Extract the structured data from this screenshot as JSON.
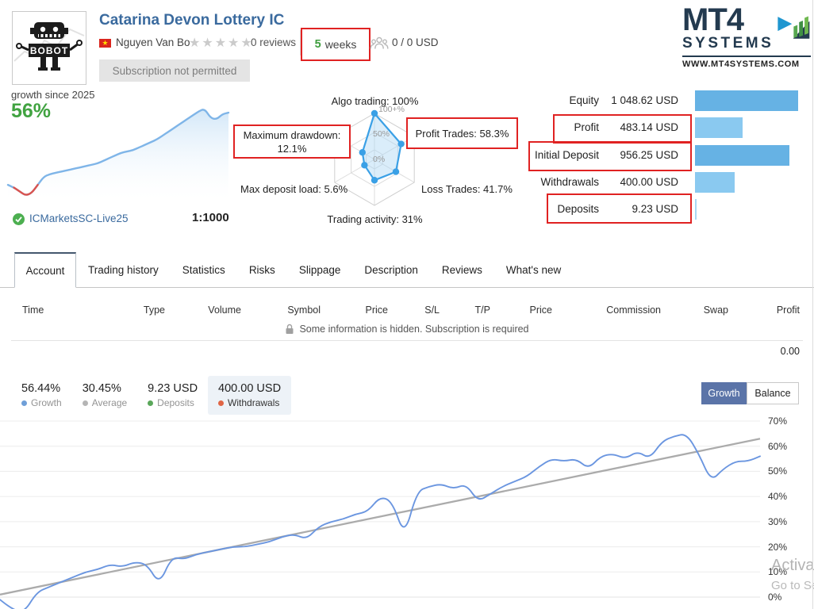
{
  "header": {
    "title": "Catarina Devon Lottery IC",
    "author": "Nguyen Van Bo",
    "stars": "★★★★★",
    "reviews": "0 reviews",
    "age_number": "5",
    "age_unit": "weeks",
    "subscribers": "0 / 0 USD",
    "subscription_status": "Subscription not permitted",
    "flag_star": "★"
  },
  "brand": {
    "name_top": "MT4",
    "name_bottom": "SYSTEMS",
    "url": "WWW.MT4SYSTEMS.COM"
  },
  "overview": {
    "growth_label": "growth since 2025",
    "growth_value": "56%",
    "account": "ICMarketsSC-Live25",
    "leverage": "1:1000"
  },
  "radar": {
    "rings": [
      "100+%",
      "50%",
      "0%"
    ],
    "labels": {
      "top": "Algo trading: 100%",
      "right_top": "Profit Trades: 58.3%",
      "right_bottom": "Loss Trades: 41.7%",
      "bottom": "Trading activity: 31%",
      "left_bottom": "Max deposit load: 5.6%",
      "left_top_1": "Maximum drawdown:",
      "left_top_2": "12.1%"
    }
  },
  "account_stats": {
    "rows": [
      {
        "label": "Equity",
        "value": "1 048.62 USD",
        "amount": 1048.62,
        "annotated": false
      },
      {
        "label": "Profit",
        "value": "483.14 USD",
        "amount": 483.14,
        "annotated": true
      },
      {
        "label": "Initial Deposit",
        "value": "956.25 USD",
        "amount": 956.25,
        "annotated": true
      },
      {
        "label": "Withdrawals",
        "value": "400.00 USD",
        "amount": 400.0,
        "annotated": false
      },
      {
        "label": "Deposits",
        "value": "9.23 USD",
        "amount": 9.23,
        "annotated": true
      }
    ]
  },
  "tabs": [
    "Account",
    "Trading history",
    "Statistics",
    "Risks",
    "Slippage",
    "Description",
    "Reviews",
    "What's new"
  ],
  "active_tab": "Account",
  "table": {
    "columns": [
      "Time",
      "Type",
      "Volume",
      "Symbol",
      "Price",
      "S/L",
      "T/P",
      "Price",
      "Commission",
      "Swap",
      "Profit"
    ],
    "notice": "Some information is hidden. Subscription is required",
    "total": "0.00"
  },
  "summary": [
    {
      "value": "56.44%",
      "label": "Growth",
      "dot": "#6f9fd8",
      "highlight": false
    },
    {
      "value": "30.45%",
      "label": "Average",
      "dot": "#b5b5b5",
      "highlight": false
    },
    {
      "value": "9.23 USD",
      "label": "Deposits",
      "dot": "#5aa75a",
      "highlight": false
    },
    {
      "value": "400.00 USD",
      "label": "Withdrawals",
      "dot": "#e06545",
      "highlight": true
    }
  ],
  "chart_toggle": {
    "growth": "Growth",
    "balance": "Balance"
  },
  "watermark": {
    "line1": "Activa",
    "line2": "Go to Se"
  },
  "colors": {
    "title_blue": "#3a6a9e",
    "green": "#41a341",
    "annotation_red": "#e02222",
    "bar_blue": "#66b2e4",
    "bar_light_blue": "#8ac9f0",
    "bar_pale_blue": "#a8d8f4",
    "radar_blue": "#3aa0e6",
    "mini_line_blue": "#7fb5e8",
    "mini_red": "#d9534f",
    "main_line_blue": "#6b96e0",
    "trend_gray": "#ababab",
    "toggle_active_bg": "#5b74a8"
  },
  "chart_data": [
    {
      "id": "mini_growth",
      "type": "area",
      "title": "growth since 2025",
      "current_value_label": "56%",
      "ylim": [
        -8,
        62
      ],
      "x_note": "evenly spaced trade sequence",
      "values": [
        2,
        0,
        -3,
        -6,
        -4,
        2,
        8,
        10,
        11,
        12,
        13,
        14,
        15,
        16,
        17,
        18,
        20,
        22,
        24,
        26,
        27,
        28,
        30,
        32,
        34,
        36,
        39,
        42,
        45,
        48,
        51,
        54,
        57,
        59,
        52,
        51,
        55,
        56
      ],
      "red_segment": [
        1,
        5
      ]
    },
    {
      "id": "risk_radar",
      "type": "radar",
      "rings": [
        "0%",
        "50%",
        "100+%"
      ],
      "axes": [
        "Algo trading",
        "Profit Trades",
        "Loss Trades",
        "Trading activity",
        "Max deposit load",
        "Maximum drawdown"
      ],
      "values": [
        100,
        58.3,
        41.7,
        31,
        5.6,
        12.1
      ]
    },
    {
      "id": "account_bars",
      "type": "bar",
      "orientation": "horizontal",
      "categories": [
        "Equity",
        "Profit",
        "Initial Deposit",
        "Withdrawals",
        "Deposits"
      ],
      "values": [
        1048.62,
        483.14,
        956.25,
        400.0,
        9.23
      ],
      "unit": "USD"
    },
    {
      "id": "main_growth",
      "type": "line",
      "ylim": [
        0,
        70
      ],
      "yticks": [
        "0%",
        "10%",
        "20%",
        "30%",
        "40%",
        "50%",
        "60%",
        "70%"
      ],
      "grid": true,
      "legend": "none",
      "x_note": "evenly spaced trade sequence",
      "series": [
        {
          "name": "Growth",
          "values": [
            -1,
            -5,
            -6,
            2,
            4,
            6,
            8,
            10,
            11,
            13,
            12,
            14,
            13,
            5,
            16,
            15,
            17,
            18,
            19,
            20,
            20,
            21,
            22,
            24,
            25,
            23,
            28,
            30,
            31,
            33,
            34,
            40,
            38,
            24,
            42,
            44,
            45,
            43,
            45,
            38,
            41,
            44,
            46,
            48,
            52,
            55,
            54,
            55,
            51,
            56,
            57,
            55,
            58,
            55,
            62,
            64,
            65,
            57,
            46,
            51,
            54,
            54,
            56
          ]
        },
        {
          "name": "Trend",
          "values": [
            1,
            63
          ],
          "note": "straight regression line endpoints"
        }
      ]
    }
  ]
}
